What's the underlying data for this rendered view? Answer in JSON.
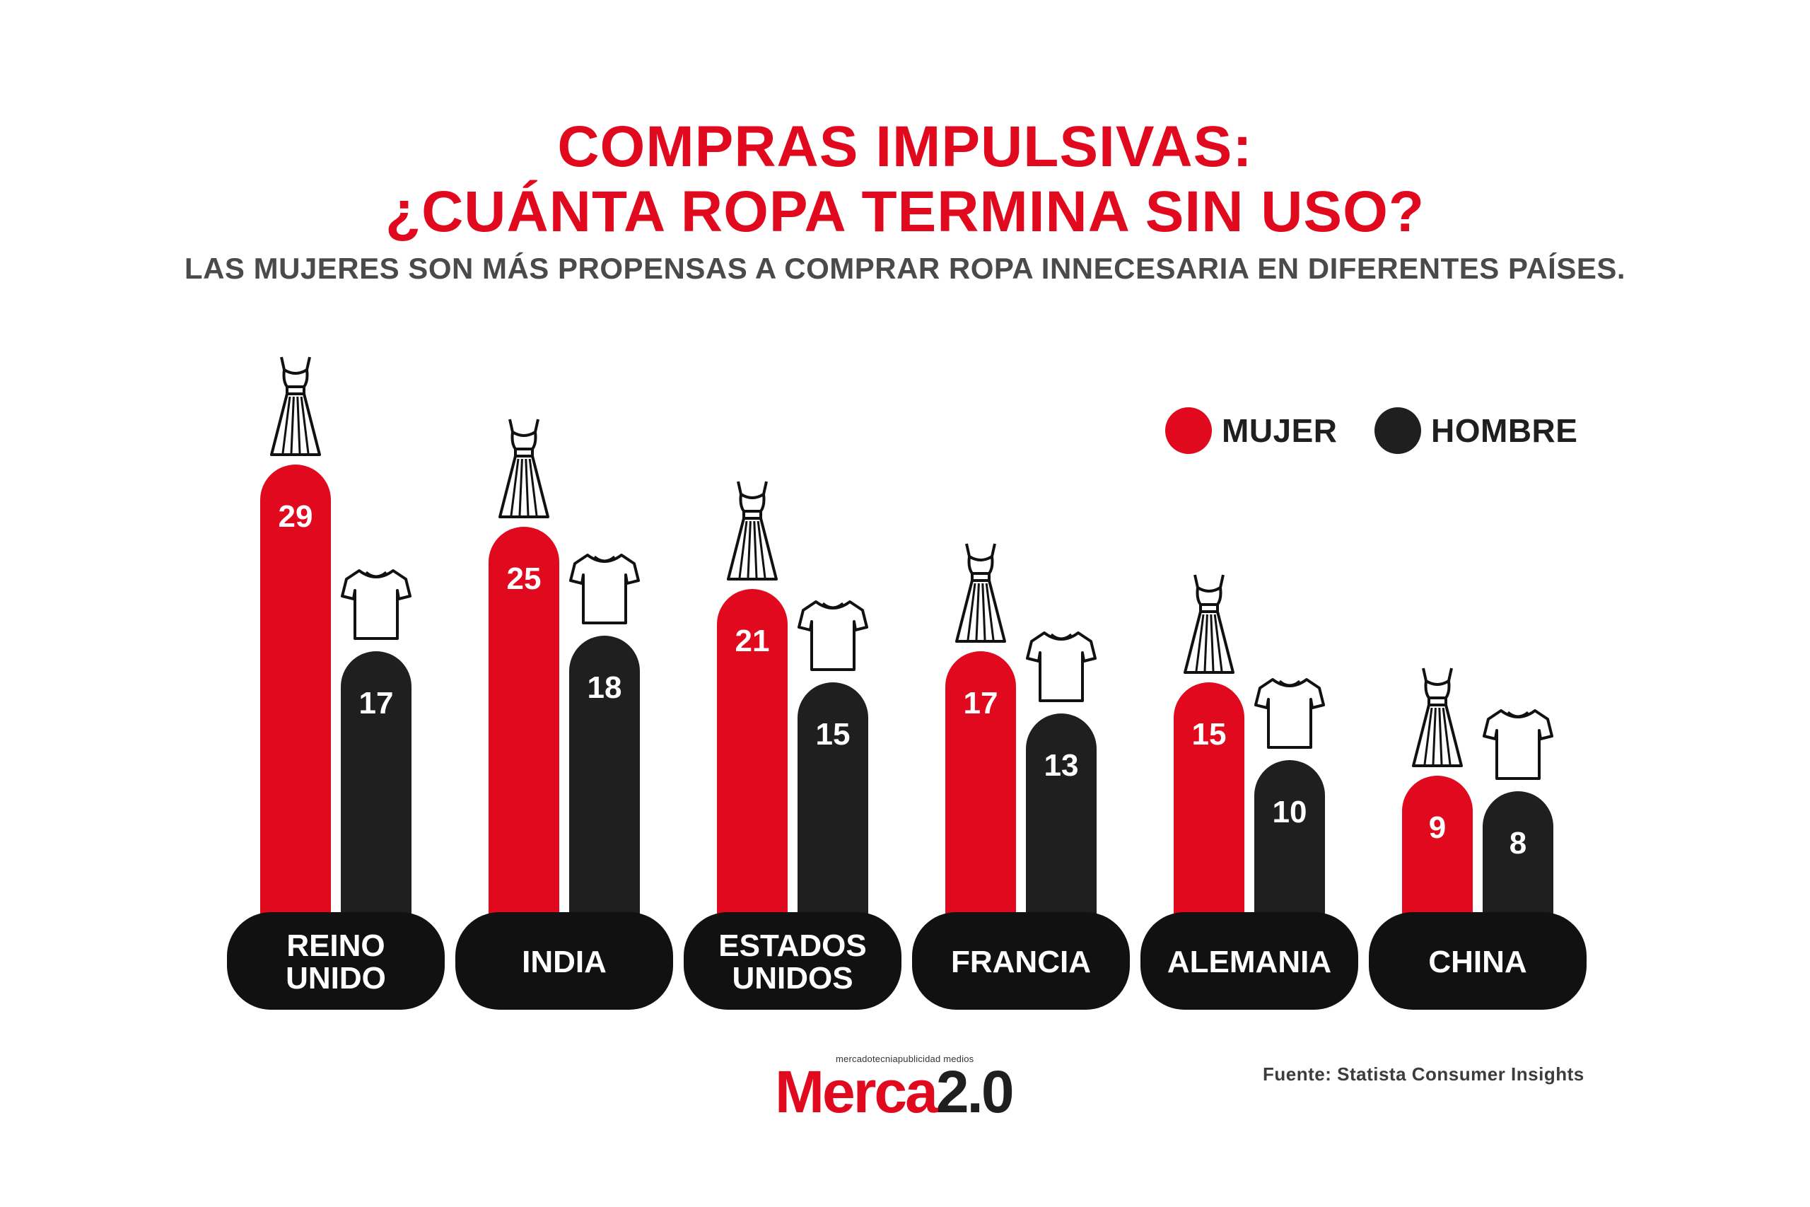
{
  "colors": {
    "mujer": "#e0091e",
    "hombre": "#1f1f1f",
    "pill": "#111111",
    "text_on_bar": "#ffffff"
  },
  "header": {
    "title_line1": "COMPRAS IMPULSIVAS:",
    "title_line2": "¿CUÁNTA ROPA TERMINA SIN USO?",
    "subtitle": "LAS MUJERES SON MÁS PROPENSAS A COMPRAR ROPA INNECESARIA EN DIFERENTES PAÍSES."
  },
  "legend": {
    "mujer": "MUJER",
    "hombre": "HOMBRE"
  },
  "footer": {
    "source": "Fuente:  Statista Consumer Insights",
    "logo_small": "mercadotecniapublicidad medios",
    "logo_merca": "Merca",
    "logo_num": "2.0"
  },
  "chart_data": {
    "type": "bar",
    "title": "COMPRAS IMPULSIVAS: ¿CUÁNTA ROPA TERMINA SIN USO?",
    "categories": [
      [
        "REINO",
        "UNIDO"
      ],
      [
        "INDIA"
      ],
      [
        "ESTADOS",
        "UNIDOS"
      ],
      [
        "FRANCIA"
      ],
      [
        "ALEMANIA"
      ],
      [
        "CHINA"
      ]
    ],
    "series": [
      {
        "name": "MUJER",
        "values": [
          29,
          25,
          21,
          17,
          15,
          9
        ],
        "icon": "dress-icon"
      },
      {
        "name": "HOMBRE",
        "values": [
          17,
          18,
          15,
          13,
          10,
          8
        ],
        "icon": "tshirt-icon"
      }
    ],
    "legend_position": "top-right",
    "grid": false
  }
}
